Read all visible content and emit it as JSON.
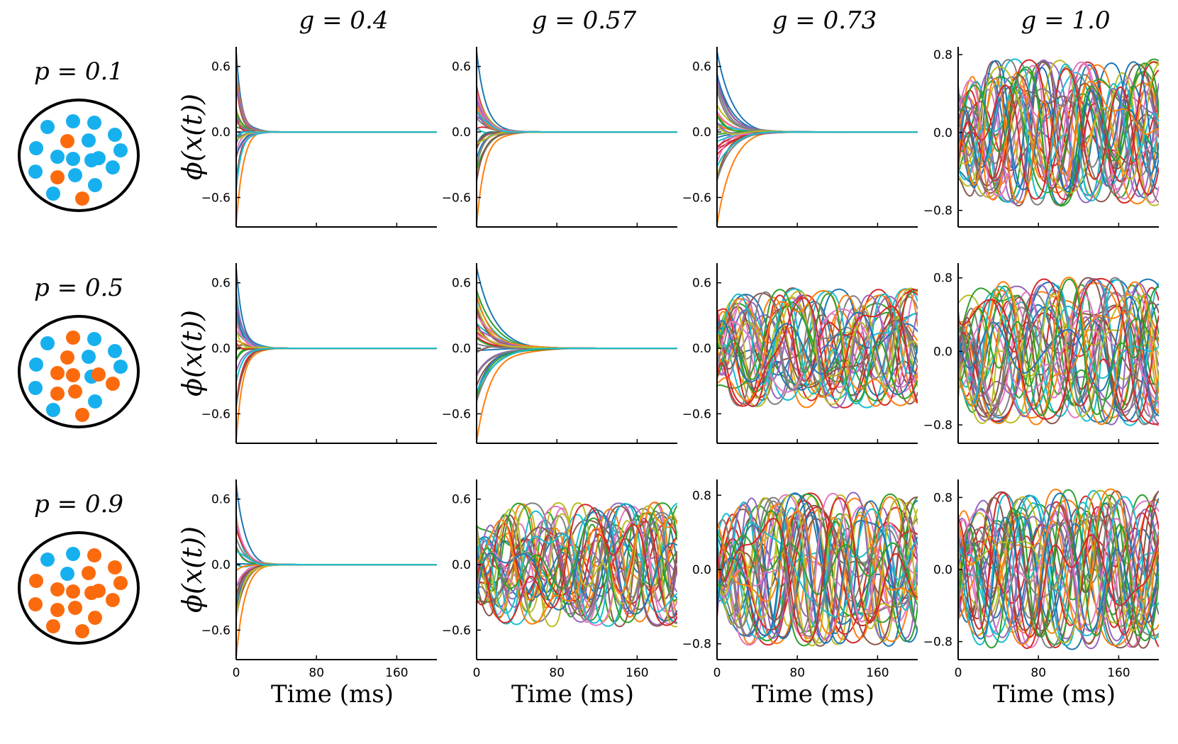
{
  "figure": {
    "ylabel": "ϕ(x(t))",
    "xlabel": "Time (ms)",
    "column_titles": [
      "g = 0.4",
      "g = 0.57",
      "g = 0.73",
      "g = 1.0"
    ],
    "row_titles": [
      "p = 0.1",
      "p = 0.5",
      "p = 0.9"
    ],
    "colors": {
      "blue_dot": "#17b0ef",
      "orange_dot": "#fb6b0e",
      "series_palette": [
        "#1f77b4",
        "#ff7f0e",
        "#2ca02c",
        "#d62728",
        "#9467bd",
        "#8c564b",
        "#e377c2",
        "#7f7f7f",
        "#bcbd22",
        "#17becf"
      ]
    }
  },
  "chart_data": {
    "type": "line",
    "description_units": "activity phi(x(t)) vs time in ms",
    "rows": [
      {
        "p": 0.1,
        "neurons": {
          "blue": 16,
          "orange": 3
        },
        "panels": [
          {
            "g": 0.4,
            "regime": "decay",
            "xlim": [
              0,
              200
            ],
            "ylim": [
              -0.87,
              0.78
            ],
            "yticks": [
              -0.6,
              0.0,
              0.6
            ],
            "ytick_labels": [
              "−0.6",
              "0.0",
              "0.6"
            ],
            "decay_ms": 6
          },
          {
            "g": 0.57,
            "regime": "decay",
            "xlim": [
              0,
              200
            ],
            "ylim": [
              -0.87,
              0.78
            ],
            "yticks": [
              -0.6,
              0.0,
              0.6
            ],
            "ytick_labels": [
              "−0.6",
              "0.0",
              "0.6"
            ],
            "decay_ms": 9
          },
          {
            "g": 0.73,
            "regime": "decay",
            "xlim": [
              0,
              200
            ],
            "ylim": [
              -0.87,
              0.78
            ],
            "yticks": [
              -0.6,
              0.0,
              0.6
            ],
            "ytick_labels": [
              "−0.6",
              "0.0",
              "0.6"
            ],
            "decay_ms": 13
          },
          {
            "g": 1.0,
            "regime": "chaotic",
            "xlim": [
              0,
              200
            ],
            "ylim": [
              -0.97,
              0.88
            ],
            "yticks": [
              -0.8,
              0.0,
              0.8
            ],
            "ytick_labels": [
              "−0.8",
              "0.0",
              "0.8"
            ],
            "amplitude": 0.82
          }
        ]
      },
      {
        "p": 0.5,
        "neurons": {
          "blue": 10,
          "orange": 9
        },
        "panels": [
          {
            "g": 0.4,
            "regime": "decay",
            "xlim": [
              0,
              200
            ],
            "ylim": [
              -0.87,
              0.78
            ],
            "yticks": [
              -0.6,
              0.0,
              0.6
            ],
            "ytick_labels": [
              "−0.6",
              "0.0",
              "0.6"
            ],
            "decay_ms": 7
          },
          {
            "g": 0.57,
            "regime": "decay",
            "xlim": [
              0,
              200
            ],
            "ylim": [
              -0.87,
              0.78
            ],
            "yticks": [
              -0.6,
              0.0,
              0.6
            ],
            "ytick_labels": [
              "−0.6",
              "0.0",
              "0.6"
            ],
            "decay_ms": 16
          },
          {
            "g": 0.73,
            "regime": "chaotic",
            "xlim": [
              0,
              200
            ],
            "ylim": [
              -0.87,
              0.78
            ],
            "yticks": [
              -0.6,
              0.0,
              0.6
            ],
            "ytick_labels": [
              "−0.6",
              "0.0",
              "0.6"
            ],
            "amplitude": 0.6
          },
          {
            "g": 1.0,
            "regime": "chaotic",
            "xlim": [
              0,
              200
            ],
            "ylim": [
              -1.0,
              0.96
            ],
            "yticks": [
              -0.8,
              0.0,
              0.8
            ],
            "ytick_labels": [
              "−0.8",
              "0.0",
              "0.8"
            ],
            "amplitude": 0.88
          }
        ]
      },
      {
        "p": 0.9,
        "neurons": {
          "blue": 3,
          "orange": 16
        },
        "panels": [
          {
            "g": 0.4,
            "regime": "decay",
            "xlim": [
              0,
              200
            ],
            "ylim": [
              -0.87,
              0.78
            ],
            "yticks": [
              -0.6,
              0.0,
              0.6
            ],
            "ytick_labels": [
              "−0.6",
              "0.0",
              "0.6"
            ],
            "decay_ms": 8
          },
          {
            "g": 0.57,
            "regime": "chaotic",
            "xlim": [
              0,
              200
            ],
            "ylim": [
              -0.87,
              0.78
            ],
            "yticks": [
              -0.6,
              0.0,
              0.6
            ],
            "ytick_labels": [
              "−0.6",
              "0.0",
              "0.6"
            ],
            "amplitude": 0.62
          },
          {
            "g": 0.73,
            "regime": "chaotic",
            "xlim": [
              0,
              200
            ],
            "ylim": [
              -0.97,
              0.97
            ],
            "yticks": [
              -0.8,
              0.0,
              0.8
            ],
            "ytick_labels": [
              "−0.8",
              "0.0",
              "0.8"
            ],
            "amplitude": 0.9
          },
          {
            "g": 1.0,
            "regime": "chaotic",
            "xlim": [
              0,
              200
            ],
            "ylim": [
              -1.0,
              1.0
            ],
            "yticks": [
              -0.8,
              0.0,
              0.8
            ],
            "ytick_labels": [
              "−0.8",
              "0.0",
              "0.8"
            ],
            "amplitude": 0.97
          }
        ]
      }
    ],
    "xticks": [
      0,
      80,
      160
    ],
    "xtick_labels": [
      "0",
      "80",
      "160"
    ]
  }
}
